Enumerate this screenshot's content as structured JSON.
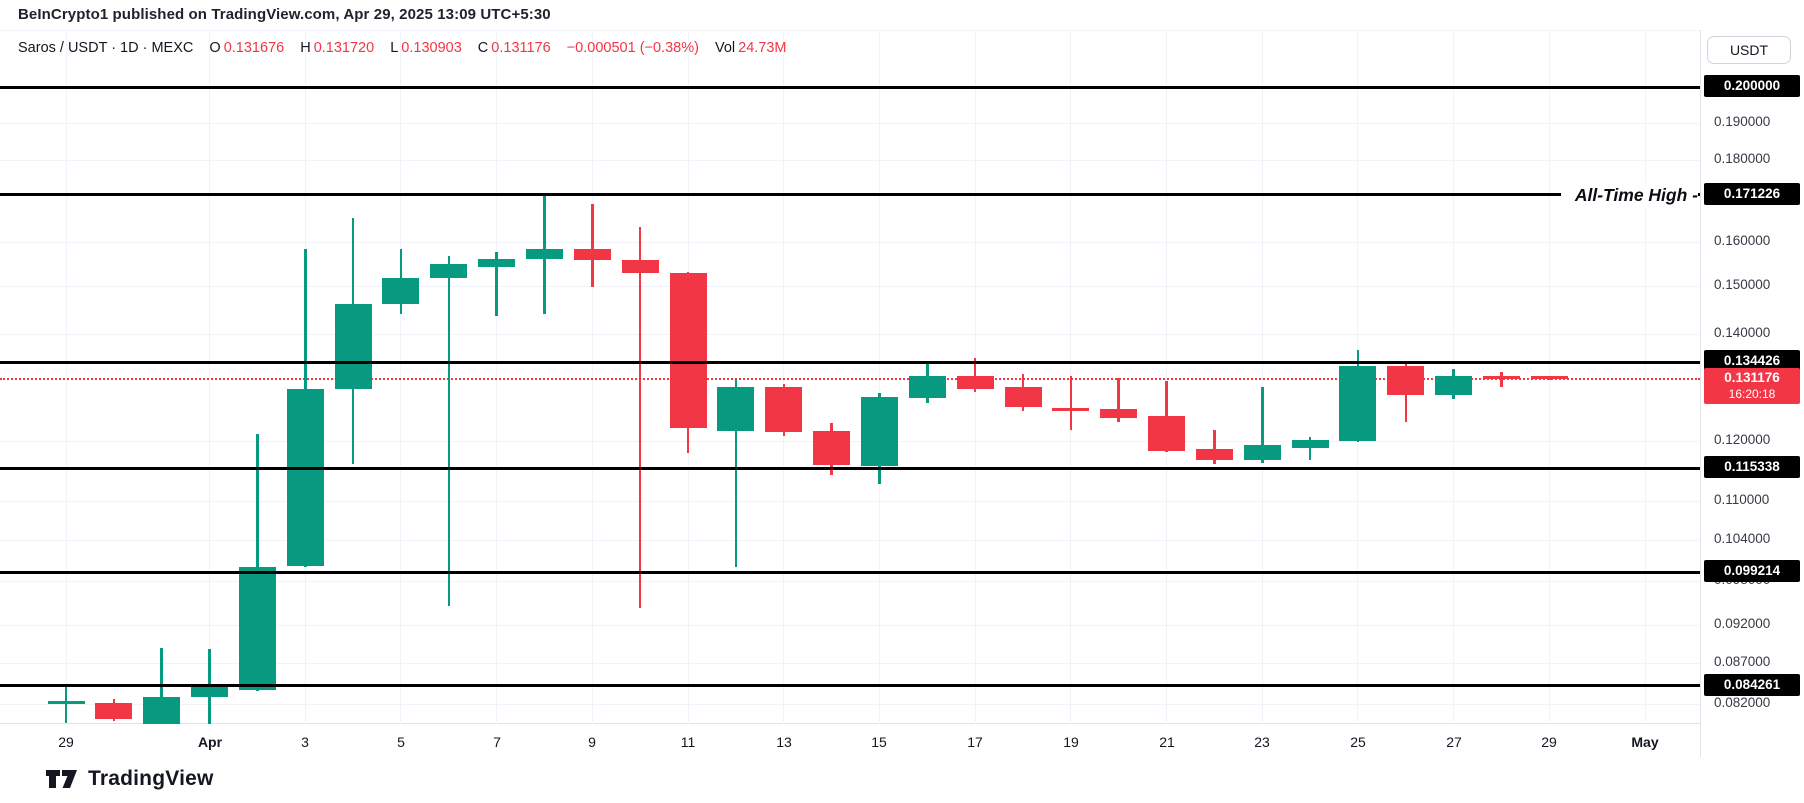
{
  "header": {
    "title": "BeInCrypto1 published on TradingView.com, Apr 29, 2025 13:09 UTC+5:30"
  },
  "legend": {
    "symbol": "Saros / USDT · 1D · MEXC",
    "o_label": "O",
    "o_value": "0.131676",
    "h_label": "H",
    "h_value": "0.131720",
    "l_label": "L",
    "l_value": "0.130903",
    "c_label": "C",
    "c_value": "0.131176",
    "change": "−0.000501 (−0.38%)",
    "vol_label": "Vol",
    "vol_value": "24.73M"
  },
  "price_axis": {
    "currency": "USDT",
    "gridline_labels": [
      {
        "price": 0.19,
        "label": "0.190000"
      },
      {
        "price": 0.18,
        "label": "0.180000"
      },
      {
        "price": 0.16,
        "label": "0.160000"
      },
      {
        "price": 0.15,
        "label": "0.150000"
      },
      {
        "price": 0.14,
        "label": "0.140000"
      },
      {
        "price": 0.12,
        "label": "0.120000"
      },
      {
        "price": 0.11,
        "label": "0.110000"
      },
      {
        "price": 0.104,
        "label": "0.104000"
      },
      {
        "price": 0.098,
        "label": "0.098000"
      },
      {
        "price": 0.092,
        "label": "0.092000"
      },
      {
        "price": 0.087,
        "label": "0.087000"
      },
      {
        "price": 0.082,
        "label": "0.082000"
      }
    ],
    "current": {
      "price": 0.131176,
      "label": "0.131176",
      "countdown": "16:20:18"
    }
  },
  "time_axis": {
    "labels": [
      {
        "text": "29",
        "index": 0,
        "bold": false
      },
      {
        "text": "Apr",
        "index": 3,
        "bold": true
      },
      {
        "text": "3",
        "index": 5,
        "bold": false
      },
      {
        "text": "5",
        "index": 7,
        "bold": false
      },
      {
        "text": "7",
        "index": 9,
        "bold": false
      },
      {
        "text": "9",
        "index": 11,
        "bold": false
      },
      {
        "text": "11",
        "index": 13,
        "bold": false
      },
      {
        "text": "13",
        "index": 15,
        "bold": false
      },
      {
        "text": "15",
        "index": 17,
        "bold": false
      },
      {
        "text": "17",
        "index": 19,
        "bold": false
      },
      {
        "text": "19",
        "index": 21,
        "bold": false
      },
      {
        "text": "21",
        "index": 23,
        "bold": false
      },
      {
        "text": "23",
        "index": 25,
        "bold": false
      },
      {
        "text": "25",
        "index": 27,
        "bold": false
      },
      {
        "text": "27",
        "index": 29,
        "bold": false
      },
      {
        "text": "29",
        "index": 31,
        "bold": false
      },
      {
        "text": "May",
        "index": 33,
        "bold": true
      }
    ]
  },
  "chart_data": {
    "type": "candlestick",
    "title": "Saros / USDT · 1D · MEXC",
    "y_scale": "log",
    "y_visible_range": [
      0.0795,
      0.2055
    ],
    "x_visible_range": [
      "Mar 29 2025",
      "May 2 2025"
    ],
    "grid": true,
    "current_price": 0.131176,
    "levels": [
      {
        "price": 0.2,
        "label": "0.200000"
      },
      {
        "price": 0.171226,
        "label": "0.171226",
        "annotation": "All-Time High -"
      },
      {
        "price": 0.134426,
        "label": "0.134426"
      },
      {
        "price": 0.115338,
        "label": "0.115338"
      },
      {
        "price": 0.099214,
        "label": "0.099214"
      },
      {
        "price": 0.084261,
        "label": "0.084261"
      }
    ],
    "candles": [
      {
        "date": "Mar 29",
        "o": 0.082,
        "h": 0.0842,
        "l": 0.0798,
        "c": 0.0824
      },
      {
        "date": "Mar 30",
        "o": 0.0822,
        "h": 0.0826,
        "l": 0.08,
        "c": 0.0803
      },
      {
        "date": "Mar 31",
        "o": 0.0791,
        "h": 0.089,
        "l": 0.0789,
        "c": 0.0829
      },
      {
        "date": "Apr 1",
        "o": 0.0828,
        "h": 0.0888,
        "l": 0.0797,
        "c": 0.0843
      },
      {
        "date": "Apr 2",
        "o": 0.0837,
        "h": 0.1212,
        "l": 0.0836,
        "c": 0.1
      },
      {
        "date": "Apr 3",
        "o": 0.1002,
        "h": 0.1583,
        "l": 0.1,
        "c": 0.1294
      },
      {
        "date": "Apr 4",
        "o": 0.1294,
        "h": 0.1655,
        "l": 0.116,
        "c": 0.1462
      },
      {
        "date": "Apr 5",
        "o": 0.1462,
        "h": 0.1583,
        "l": 0.1441,
        "c": 0.1517
      },
      {
        "date": "Apr 6",
        "o": 0.1517,
        "h": 0.1566,
        "l": 0.0945,
        "c": 0.1548
      },
      {
        "date": "Apr 7",
        "o": 0.1544,
        "h": 0.1577,
        "l": 0.1437,
        "c": 0.1561
      },
      {
        "date": "Apr 8",
        "o": 0.1559,
        "h": 0.1712,
        "l": 0.1441,
        "c": 0.1582
      },
      {
        "date": "Apr 9",
        "o": 0.1582,
        "h": 0.1689,
        "l": 0.1498,
        "c": 0.1557
      },
      {
        "date": "Apr 10",
        "o": 0.1559,
        "h": 0.1634,
        "l": 0.0943,
        "c": 0.153
      },
      {
        "date": "Apr 11",
        "o": 0.1528,
        "h": 0.1532,
        "l": 0.1179,
        "c": 0.1222
      },
      {
        "date": "Apr 12",
        "o": 0.1217,
        "h": 0.1311,
        "l": 0.1,
        "c": 0.1296
      },
      {
        "date": "Apr 13",
        "o": 0.1296,
        "h": 0.1303,
        "l": 0.1208,
        "c": 0.1215
      },
      {
        "date": "Apr 14",
        "o": 0.1217,
        "h": 0.1232,
        "l": 0.1143,
        "c": 0.1159
      },
      {
        "date": "Apr 15",
        "o": 0.1158,
        "h": 0.1285,
        "l": 0.1126,
        "c": 0.1279
      },
      {
        "date": "Apr 16",
        "o": 0.1277,
        "h": 0.1345,
        "l": 0.1268,
        "c": 0.1318
      },
      {
        "date": "Apr 17",
        "o": 0.1318,
        "h": 0.1353,
        "l": 0.1288,
        "c": 0.1294
      },
      {
        "date": "Apr 18",
        "o": 0.1296,
        "h": 0.1322,
        "l": 0.1253,
        "c": 0.1259
      },
      {
        "date": "Apr 19",
        "o": 0.1259,
        "h": 0.1317,
        "l": 0.1218,
        "c": 0.1255
      },
      {
        "date": "Apr 20",
        "o": 0.1257,
        "h": 0.1313,
        "l": 0.1232,
        "c": 0.1241
      },
      {
        "date": "Apr 21",
        "o": 0.1244,
        "h": 0.1309,
        "l": 0.1181,
        "c": 0.1183
      },
      {
        "date": "Apr 22",
        "o": 0.1185,
        "h": 0.1218,
        "l": 0.1159,
        "c": 0.1166
      },
      {
        "date": "Apr 23",
        "o": 0.1166,
        "h": 0.1296,
        "l": 0.1161,
        "c": 0.1192
      },
      {
        "date": "Apr 24",
        "o": 0.1188,
        "h": 0.1207,
        "l": 0.1168,
        "c": 0.1202
      },
      {
        "date": "Apr 25",
        "o": 0.1199,
        "h": 0.1368,
        "l": 0.1197,
        "c": 0.1337
      },
      {
        "date": "Apr 26",
        "o": 0.1337,
        "h": 0.1341,
        "l": 0.1234,
        "c": 0.1283
      },
      {
        "date": "Apr 27",
        "o": 0.1283,
        "h": 0.1331,
        "l": 0.1275,
        "c": 0.1318
      },
      {
        "date": "Apr 28",
        "o": 0.1318,
        "h": 0.1326,
        "l": 0.1298,
        "c": 0.1312
      },
      {
        "date": "Apr 29",
        "o": 0.131676,
        "h": 0.13172,
        "l": 0.130903,
        "c": 0.131176
      }
    ]
  },
  "footer": {
    "brand": "TradingView"
  },
  "colors": {
    "up": "#089981",
    "down": "#f23645",
    "level_line": "#000000",
    "current_line": "#f23645",
    "badge_bg": "#000000",
    "current_badge_bg": "#f23645"
  }
}
